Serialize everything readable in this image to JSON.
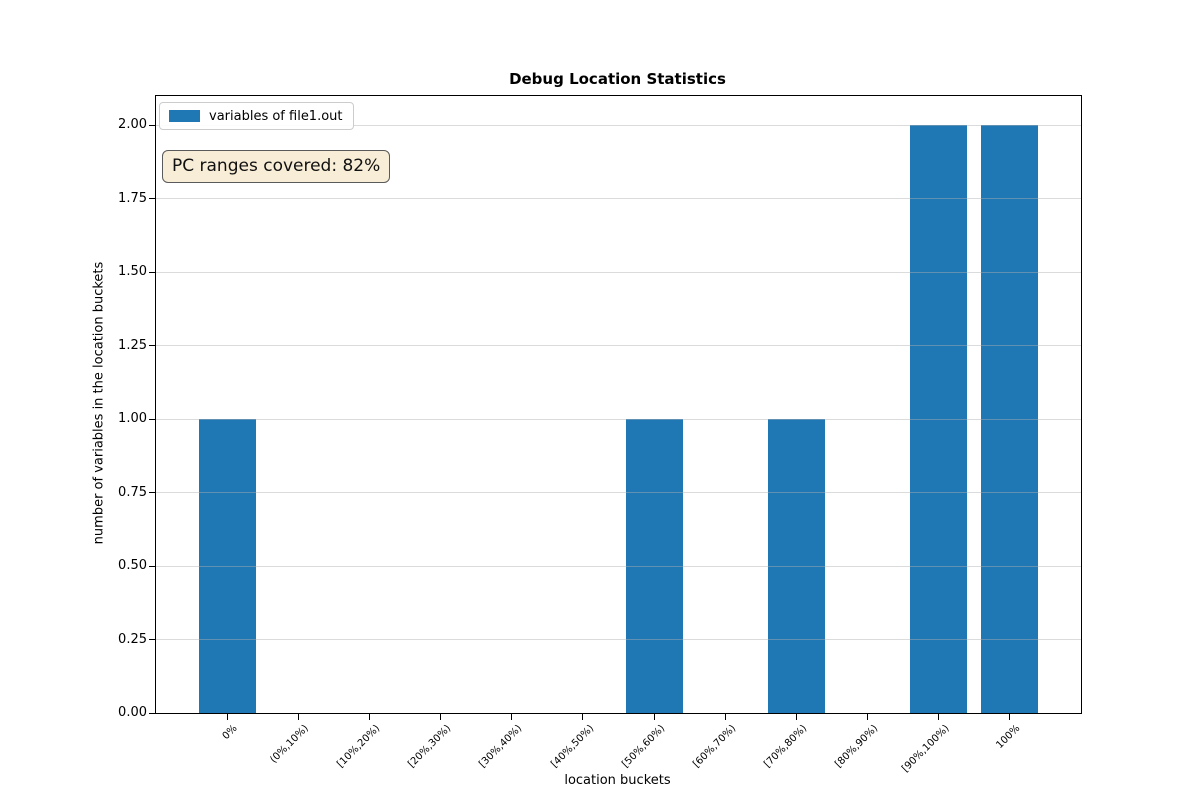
{
  "figure": {
    "title": "Debug Location Statistics",
    "xlabel": "location buckets",
    "ylabel": "number of variables in the location buckets",
    "annotation": "PC ranges covered: 82%",
    "legend": {
      "label": "variables of file1.out"
    }
  },
  "colors": {
    "bar": "#1f77b4",
    "grid": "#b0b0b0",
    "grid_alpha": 0.45,
    "spine": "#000000",
    "annotation_bg": "#f8edd6",
    "annotation_border": "#5a5a5a",
    "legend_border": "#cccccc"
  },
  "chart_data": {
    "type": "bar",
    "title": "Debug Location Statistics",
    "xlabel": "location buckets",
    "ylabel": "number of variables in the location buckets",
    "categories": [
      "0%",
      "(0%,10%)",
      "[10%,20%)",
      "[20%,30%)",
      "[30%,40%)",
      "[40%,50%)",
      "[50%,60%)",
      "[60%,70%)",
      "[70%,80%)",
      "[80%,90%)",
      "[90%,100%)",
      "100%"
    ],
    "series": [
      {
        "name": "variables of file1.out",
        "color": "#1f77b4",
        "values": [
          1,
          0,
          0,
          0,
          0,
          0,
          1,
          0,
          1,
          0,
          2,
          2
        ]
      }
    ],
    "ylim": [
      0,
      2.1
    ],
    "xlim": [
      -1,
      12
    ],
    "bar_width": 0.8,
    "ytick_values": [
      0,
      0.25,
      0.5,
      0.75,
      1,
      1.25,
      1.5,
      1.75,
      2
    ],
    "ytick_labels": [
      "0.00",
      "0.25",
      "0.50",
      "0.75",
      "1.00",
      "1.25",
      "1.50",
      "1.75",
      "2.00"
    ],
    "grid": "y",
    "legend_position": "upper-left",
    "annotation": "PC ranges covered: 82%"
  }
}
